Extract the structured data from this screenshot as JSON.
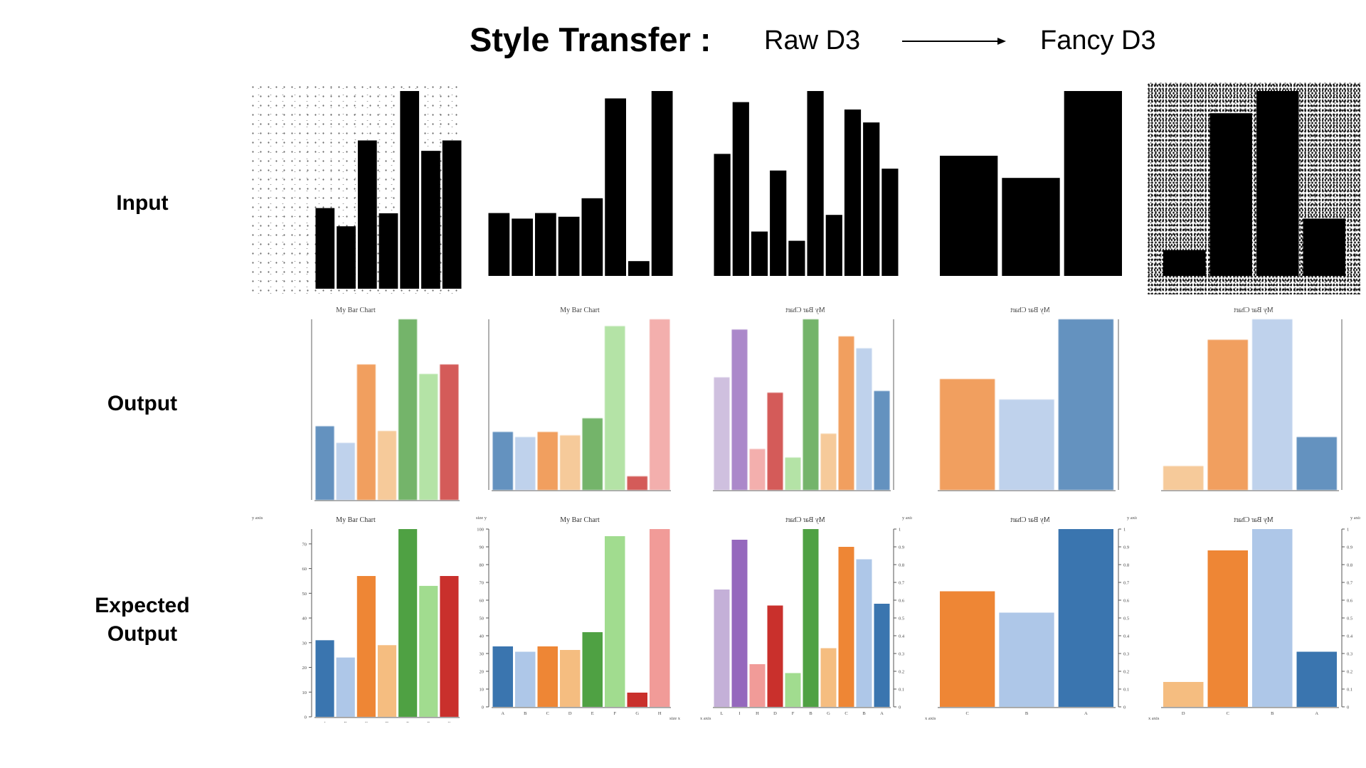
{
  "header": {
    "title": "Style Transfer :",
    "from_label": "Raw D3",
    "to_label": "Fancy D3"
  },
  "rows": {
    "input": "Input",
    "output": "Output",
    "expected": "Expected Output"
  },
  "colors": {
    "blue": "#3a75af",
    "light_blue": "#aec7e8",
    "orange": "#ee8635",
    "light_orange": "#f5bd80",
    "green": "#4fa143",
    "light_green": "#a1dc8f",
    "red": "#c9302c",
    "pink": "#f19b98",
    "purple": "#9568bd",
    "light_purple": "#c4b0d8"
  },
  "chart_title": "My Bar Chart",
  "chart_data": [
    {
      "type": "bar",
      "title": "My Bar Chart",
      "ylabel": "y axis",
      "categories": [
        "A",
        "B",
        "C",
        "D",
        "E",
        "F",
        "G"
      ],
      "values": [
        31,
        24,
        57,
        29,
        76,
        53,
        57
      ],
      "colors": [
        "blue",
        "light_blue",
        "orange",
        "light_orange",
        "green",
        "light_green",
        "red"
      ],
      "yticks": [
        0,
        10,
        20,
        30,
        40,
        50,
        60,
        70
      ],
      "ylim": [
        0,
        76
      ],
      "yaxis": "left"
    },
    {
      "type": "bar",
      "title": "My Bar Chart",
      "ylabel": "size y",
      "xlabel": "size x",
      "categories": [
        "A",
        "B",
        "C",
        "D",
        "E",
        "F",
        "G",
        "H"
      ],
      "values": [
        34,
        31,
        34,
        32,
        42,
        96,
        8,
        100
      ],
      "colors": [
        "blue",
        "light_blue",
        "orange",
        "light_orange",
        "green",
        "light_green",
        "red",
        "pink"
      ],
      "yticks": [
        0,
        10,
        20,
        30,
        40,
        50,
        60,
        70,
        80,
        90,
        100
      ],
      "ylim": [
        0,
        100
      ],
      "yaxis": "left"
    },
    {
      "type": "bar",
      "title": "My Bar Chart",
      "ylabel": "y axis",
      "xlabel": "x axis",
      "categories": [
        "L",
        "I",
        "H",
        "D",
        "F",
        "B",
        "G",
        "C",
        "B",
        "A"
      ],
      "values": [
        0.66,
        0.94,
        0.24,
        0.57,
        0.19,
        1.0,
        0.33,
        0.9,
        0.83,
        0.58
      ],
      "colors": [
        "light_purple",
        "purple",
        "pink",
        "red",
        "light_green",
        "green",
        "light_orange",
        "orange",
        "light_blue",
        "blue"
      ],
      "yticks": [
        0,
        0.1,
        0.2,
        0.3,
        0.4,
        0.5,
        0.6,
        0.7,
        0.8,
        0.9,
        1.0
      ],
      "ylim": [
        0,
        1.0
      ],
      "yaxis": "right"
    },
    {
      "type": "bar",
      "title": "My Bar Chart",
      "ylabel": "y axis",
      "xlabel": "x axis",
      "categories": [
        "C",
        "B",
        "A"
      ],
      "values": [
        0.65,
        0.53,
        1.0
      ],
      "colors": [
        "orange",
        "light_blue",
        "blue"
      ],
      "yticks": [
        0,
        0.1,
        0.2,
        0.3,
        0.4,
        0.5,
        0.6,
        0.7,
        0.8,
        0.9,
        1.0
      ],
      "ylim": [
        0,
        1.0
      ],
      "yaxis": "right"
    },
    {
      "type": "bar",
      "title": "My Bar Chart",
      "ylabel": "y axis",
      "xlabel": "x axis",
      "categories": [
        "D",
        "C",
        "B",
        "A"
      ],
      "values": [
        0.14,
        0.88,
        1.0,
        0.31
      ],
      "colors": [
        "light_orange",
        "orange",
        "light_blue",
        "blue"
      ],
      "yticks": [
        0,
        0.1,
        0.2,
        0.3,
        0.4,
        0.5,
        0.6,
        0.7,
        0.8,
        0.9,
        1.0
      ],
      "ylim": [
        0,
        1.0
      ],
      "yaxis": "right"
    }
  ]
}
